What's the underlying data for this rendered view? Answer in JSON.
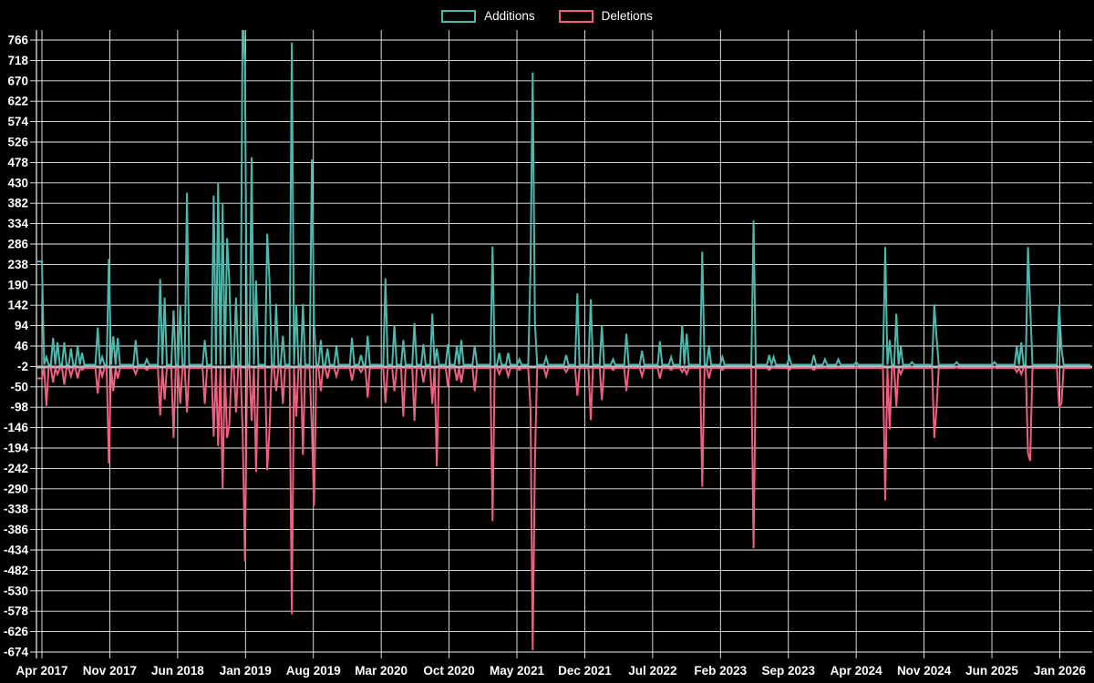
{
  "chart_data": {
    "type": "line",
    "title": "",
    "legend": [
      "Additions",
      "Deletions"
    ],
    "legend_position": "top-center",
    "grid": true,
    "colors": {
      "additions": "#4cb9ae",
      "deletions": "#f15f80",
      "grid_line": "#f0f0f0",
      "zero_baseline": "#b9bbc4",
      "background": "#000000",
      "tick_text": "#ffffff"
    },
    "x_axis": {
      "unit": "week",
      "tick_labels": [
        "Apr 2017",
        "Nov 2017",
        "Jun 2018",
        "Jan 2019",
        "Aug 2019",
        "Mar 2020",
        "Oct 2020",
        "May 2021",
        "Dec 2021",
        "Jul 2022",
        "Feb 2023",
        "Sep 2023",
        "Apr 2024",
        "Nov 2024",
        "Jun 2025",
        "Jan 2026"
      ]
    },
    "y_axis": {
      "tick_labels": [
        766,
        718,
        670,
        622,
        574,
        526,
        478,
        430,
        382,
        334,
        286,
        238,
        190,
        142,
        94,
        46,
        -2,
        -50,
        -98,
        -146,
        -194,
        -242,
        -290,
        -338,
        -386,
        -434,
        -482,
        -530,
        -578,
        -626,
        -674
      ],
      "range": [
        -674,
        766
      ],
      "tick_step": 48
    },
    "weeks_total": 470,
    "baseline_values": {
      "additions": 2,
      "deletions": -6
    },
    "note": "sparse weekly spikes as [week_index, additions, deletions]; unlisted weeks sit at baseline",
    "spikes": [
      [
        0,
        245,
        -30
      ],
      [
        2,
        20,
        -95
      ],
      [
        5,
        65,
        -40
      ],
      [
        7,
        55,
        -20
      ],
      [
        10,
        55,
        -45
      ],
      [
        13,
        40,
        -25
      ],
      [
        16,
        45,
        -30
      ],
      [
        18,
        30,
        -10
      ],
      [
        25,
        90,
        -66
      ],
      [
        27,
        20,
        -25
      ],
      [
        30,
        251,
        -230
      ],
      [
        32,
        69,
        -60
      ],
      [
        34,
        65,
        -30
      ],
      [
        42,
        60,
        -20
      ],
      [
        47,
        15,
        -10
      ],
      [
        53,
        204,
        -118
      ],
      [
        55,
        160,
        -80
      ],
      [
        59,
        130,
        -170
      ],
      [
        62,
        140,
        -90
      ],
      [
        65,
        407,
        -110
      ],
      [
        73,
        60,
        -90
      ],
      [
        77,
        400,
        -167
      ],
      [
        79,
        430,
        -190
      ],
      [
        81,
        380,
        -290
      ],
      [
        83,
        300,
        -170
      ],
      [
        84,
        200,
        -140
      ],
      [
        87,
        160,
        -110
      ],
      [
        90,
        850,
        -160
      ],
      [
        91,
        700,
        -461
      ],
      [
        94,
        490,
        -130
      ],
      [
        96,
        200,
        -250
      ],
      [
        101,
        310,
        -246
      ],
      [
        102,
        200,
        -150
      ],
      [
        105,
        145,
        -60
      ],
      [
        108,
        70,
        -90
      ],
      [
        112,
        760,
        -585
      ],
      [
        114,
        140,
        -120
      ],
      [
        117,
        145,
        -210
      ],
      [
        121,
        485,
        -150
      ],
      [
        122,
        100,
        -330
      ],
      [
        125,
        60,
        -60
      ],
      [
        128,
        40,
        -30
      ],
      [
        132,
        45,
        -25
      ],
      [
        139,
        65,
        -35
      ],
      [
        143,
        25,
        -15
      ],
      [
        146,
        70,
        -75
      ],
      [
        154,
        205,
        -88
      ],
      [
        158,
        94,
        -60
      ],
      [
        162,
        60,
        -120
      ],
      [
        167,
        100,
        -130
      ],
      [
        171,
        50,
        -40
      ],
      [
        175,
        122,
        -90
      ],
      [
        177,
        40,
        -237
      ],
      [
        182,
        50,
        -50
      ],
      [
        186,
        45,
        -35
      ],
      [
        188,
        60,
        -40
      ],
      [
        194,
        47,
        -60
      ],
      [
        202,
        280,
        -366
      ],
      [
        205,
        30,
        -20
      ],
      [
        209,
        30,
        -25
      ],
      [
        214,
        15,
        -10
      ],
      [
        219,
        230,
        -100
      ],
      [
        220,
        690,
        -670
      ],
      [
        221,
        100,
        -220
      ],
      [
        226,
        20,
        -25
      ],
      [
        235,
        25,
        -15
      ],
      [
        240,
        170,
        -71
      ],
      [
        246,
        156,
        -128
      ],
      [
        251,
        94,
        -81
      ],
      [
        256,
        15,
        -10
      ],
      [
        262,
        75,
        -60
      ],
      [
        269,
        35,
        -25
      ],
      [
        277,
        57,
        -30
      ],
      [
        282,
        20,
        -10
      ],
      [
        287,
        95,
        -15
      ],
      [
        289,
        75,
        -20
      ],
      [
        296,
        268,
        -285
      ],
      [
        299,
        45,
        -30
      ],
      [
        305,
        20,
        -10
      ],
      [
        319,
        341,
        -430
      ],
      [
        326,
        25,
        -10
      ],
      [
        328,
        20,
        -5
      ],
      [
        335,
        20,
        -10
      ],
      [
        346,
        25,
        -10
      ],
      [
        351,
        15,
        -5
      ],
      [
        357,
        15,
        -5
      ],
      [
        365,
        8,
        -4
      ],
      [
        378,
        279,
        -317
      ],
      [
        380,
        60,
        -150
      ],
      [
        383,
        122,
        -96
      ],
      [
        385,
        45,
        -20
      ],
      [
        390,
        8,
        -5
      ],
      [
        400,
        144,
        -170
      ],
      [
        401,
        70,
        -105
      ],
      [
        410,
        8,
        -4
      ],
      [
        427,
        8,
        -4
      ],
      [
        437,
        45,
        -15
      ],
      [
        439,
        55,
        -20
      ],
      [
        442,
        279,
        -206
      ],
      [
        443,
        140,
        -224
      ],
      [
        456,
        144,
        -100
      ],
      [
        457,
        40,
        -88
      ]
    ]
  }
}
